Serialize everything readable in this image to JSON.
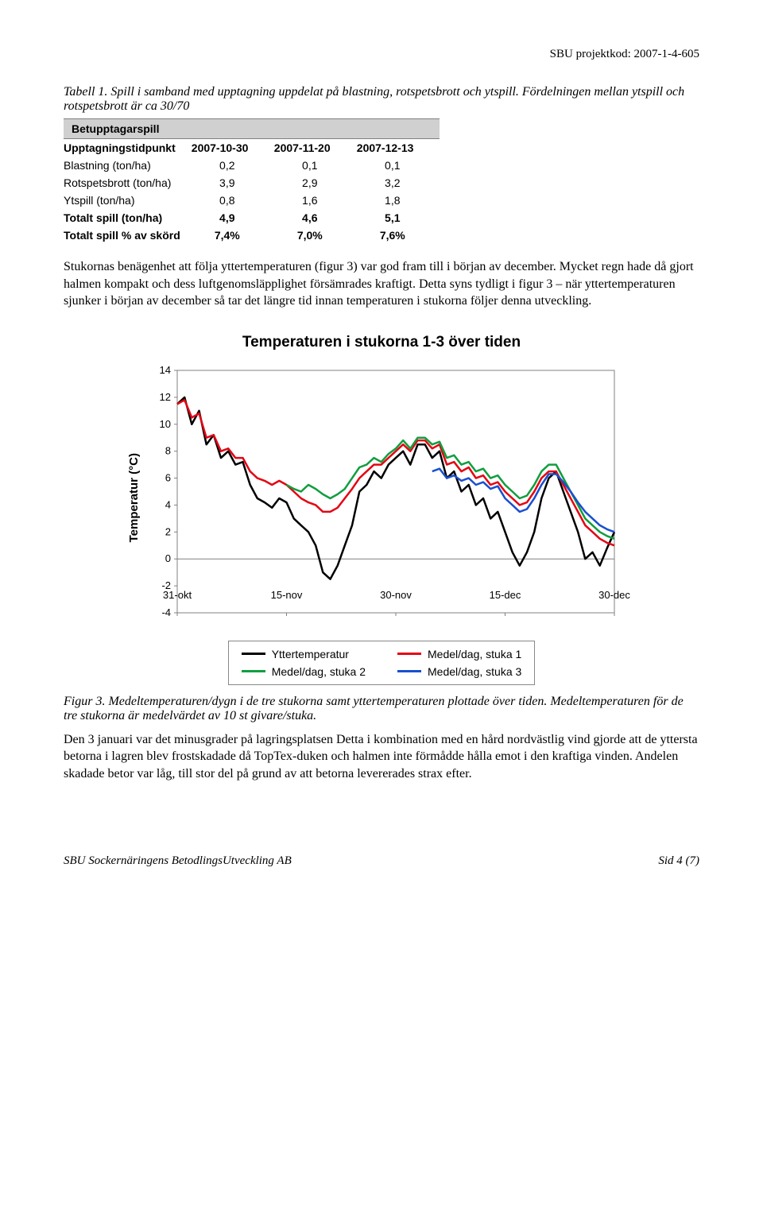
{
  "header": {
    "project_code": "SBU projektkod: 2007-1-4-605"
  },
  "table_caption": "Tabell 1. Spill i samband med upptagning uppdelat på blastning, rotspetsbrott och ytspill. Fördelningen mellan ytspill och rotspetsbrott är ca 30/70",
  "table": {
    "section_header": "Betupptagarspill",
    "col_headers": [
      "Upptagningstidpunkt",
      "2007-10-30",
      "2007-11-20",
      "2007-12-13"
    ],
    "rows": [
      {
        "label": "Blastning (ton/ha)",
        "vals": [
          "0,2",
          "0,1",
          "0,1"
        ],
        "bold": false
      },
      {
        "label": "Rotspetsbrott (ton/ha)",
        "vals": [
          "3,9",
          "2,9",
          "3,2"
        ],
        "bold": false
      },
      {
        "label": "Ytspill (ton/ha)",
        "vals": [
          "0,8",
          "1,6",
          "1,8"
        ],
        "bold": false
      },
      {
        "label": "Totalt spill (ton/ha)",
        "vals": [
          "4,9",
          "4,6",
          "5,1"
        ],
        "bold": true
      },
      {
        "label": "Totalt spill % av skörd",
        "vals": [
          "7,4%",
          "7,0%",
          "7,6%"
        ],
        "bold": true
      }
    ]
  },
  "paragraph_1": "Stukornas benägenhet att följa yttertemperaturen (figur 3) var god fram till i början av december. Mycket regn hade då gjort halmen kompakt och dess luftgenomsläpplighet försämrades kraftigt. Detta syns tydligt i figur 3 – när yttertemperaturen sjunker i början av december så tar det längre tid innan temperaturen i stukorna följer denna utveckling.",
  "chart": {
    "type": "line",
    "title": "Temperaturen i stukorna 1-3 över tiden",
    "ylabel": "Temperatur (°C)",
    "ylim": [
      -4,
      14
    ],
    "ytick_step": 2,
    "x_range_days": [
      0,
      60
    ],
    "xticks": [
      {
        "x": 0,
        "label": "31-okt"
      },
      {
        "x": 15,
        "label": "15-nov"
      },
      {
        "x": 30,
        "label": "30-nov"
      },
      {
        "x": 45,
        "label": "15-dec"
      },
      {
        "x": 60,
        "label": "30-dec"
      }
    ],
    "line_width": 2.5,
    "background_color": "#ffffff",
    "axis_color": "#808080",
    "text_color": "#000000",
    "series": [
      {
        "name": "Yttertemperatur",
        "color": "#000000",
        "data": [
          [
            0,
            11.5
          ],
          [
            1,
            12
          ],
          [
            2,
            10
          ],
          [
            3,
            11
          ],
          [
            4,
            8.5
          ],
          [
            5,
            9.2
          ],
          [
            6,
            7.5
          ],
          [
            7,
            8
          ],
          [
            8,
            7
          ],
          [
            9,
            7.2
          ],
          [
            10,
            5.5
          ],
          [
            11,
            4.5
          ],
          [
            12,
            4.2
          ],
          [
            13,
            3.8
          ],
          [
            14,
            4.5
          ],
          [
            15,
            4.2
          ],
          [
            16,
            3
          ],
          [
            17,
            2.5
          ],
          [
            18,
            2
          ],
          [
            19,
            1
          ],
          [
            20,
            -1
          ],
          [
            21,
            -1.5
          ],
          [
            22,
            -0.5
          ],
          [
            23,
            1
          ],
          [
            24,
            2.5
          ],
          [
            25,
            5
          ],
          [
            26,
            5.5
          ],
          [
            27,
            6.5
          ],
          [
            28,
            6
          ],
          [
            29,
            7
          ],
          [
            30,
            7.5
          ],
          [
            31,
            8
          ],
          [
            32,
            7
          ],
          [
            33,
            8.5
          ],
          [
            34,
            8.5
          ],
          [
            35,
            7.5
          ],
          [
            36,
            8
          ],
          [
            37,
            6
          ],
          [
            38,
            6.5
          ],
          [
            39,
            5
          ],
          [
            40,
            5.5
          ],
          [
            41,
            4
          ],
          [
            42,
            4.5
          ],
          [
            43,
            3
          ],
          [
            44,
            3.5
          ],
          [
            45,
            2
          ],
          [
            46,
            0.5
          ],
          [
            47,
            -0.5
          ],
          [
            48,
            0.5
          ],
          [
            49,
            2
          ],
          [
            50,
            4.5
          ],
          [
            51,
            6
          ],
          [
            52,
            6.5
          ],
          [
            53,
            5
          ],
          [
            54,
            3.5
          ],
          [
            55,
            2
          ],
          [
            56,
            0
          ],
          [
            57,
            0.5
          ],
          [
            58,
            -0.5
          ],
          [
            59,
            0.8
          ],
          [
            60,
            2
          ]
        ]
      },
      {
        "name": "Medel/dag, stuka 1",
        "color": "#e30613",
        "data": [
          [
            0,
            11.5
          ],
          [
            1,
            11.8
          ],
          [
            2,
            10.5
          ],
          [
            3,
            10.8
          ],
          [
            4,
            9
          ],
          [
            5,
            9.2
          ],
          [
            6,
            8
          ],
          [
            7,
            8.2
          ],
          [
            8,
            7.5
          ],
          [
            9,
            7.5
          ],
          [
            10,
            6.5
          ],
          [
            11,
            6
          ],
          [
            12,
            5.8
          ],
          [
            13,
            5.5
          ],
          [
            14,
            5.8
          ],
          [
            15,
            5.5
          ],
          [
            16,
            5
          ],
          [
            17,
            4.5
          ],
          [
            18,
            4.2
          ],
          [
            19,
            4
          ],
          [
            20,
            3.5
          ],
          [
            21,
            3.5
          ],
          [
            22,
            3.8
          ],
          [
            23,
            4.5
          ],
          [
            24,
            5.2
          ],
          [
            25,
            6
          ],
          [
            26,
            6.5
          ],
          [
            27,
            7
          ],
          [
            28,
            7
          ],
          [
            29,
            7.5
          ],
          [
            30,
            8
          ],
          [
            31,
            8.5
          ],
          [
            32,
            8
          ],
          [
            33,
            8.8
          ],
          [
            34,
            8.8
          ],
          [
            35,
            8.2
          ],
          [
            36,
            8.5
          ],
          [
            37,
            7
          ],
          [
            38,
            7.2
          ],
          [
            39,
            6.5
          ],
          [
            40,
            6.8
          ],
          [
            41,
            6
          ],
          [
            42,
            6.2
          ],
          [
            43,
            5.5
          ],
          [
            44,
            5.7
          ],
          [
            45,
            5
          ],
          [
            46,
            4.5
          ],
          [
            47,
            4
          ],
          [
            48,
            4.2
          ],
          [
            49,
            5
          ],
          [
            50,
            6
          ],
          [
            51,
            6.5
          ],
          [
            52,
            6.5
          ],
          [
            53,
            5.5
          ],
          [
            54,
            4.5
          ],
          [
            55,
            3.5
          ],
          [
            56,
            2.5
          ],
          [
            57,
            2
          ],
          [
            58,
            1.5
          ],
          [
            59,
            1.2
          ],
          [
            60,
            1
          ]
        ]
      },
      {
        "name": "Medel/dag, stuka 2",
        "color": "#119e3f",
        "data": [
          [
            15,
            5.5
          ],
          [
            16,
            5.2
          ],
          [
            17,
            5
          ],
          [
            18,
            5.5
          ],
          [
            19,
            5.2
          ],
          [
            20,
            4.8
          ],
          [
            21,
            4.5
          ],
          [
            22,
            4.8
          ],
          [
            23,
            5.2
          ],
          [
            24,
            6
          ],
          [
            25,
            6.8
          ],
          [
            26,
            7
          ],
          [
            27,
            7.5
          ],
          [
            28,
            7.2
          ],
          [
            29,
            7.8
          ],
          [
            30,
            8.2
          ],
          [
            31,
            8.8
          ],
          [
            32,
            8.2
          ],
          [
            33,
            9
          ],
          [
            34,
            9
          ],
          [
            35,
            8.5
          ],
          [
            36,
            8.7
          ],
          [
            37,
            7.5
          ],
          [
            38,
            7.7
          ],
          [
            39,
            7
          ],
          [
            40,
            7.2
          ],
          [
            41,
            6.5
          ],
          [
            42,
            6.7
          ],
          [
            43,
            6
          ],
          [
            44,
            6.2
          ],
          [
            45,
            5.5
          ],
          [
            46,
            5
          ],
          [
            47,
            4.5
          ],
          [
            48,
            4.7
          ],
          [
            49,
            5.5
          ],
          [
            50,
            6.5
          ],
          [
            51,
            7
          ],
          [
            52,
            7
          ],
          [
            53,
            6
          ],
          [
            54,
            5
          ],
          [
            55,
            4
          ],
          [
            56,
            3
          ],
          [
            57,
            2.5
          ],
          [
            58,
            2
          ],
          [
            59,
            1.7
          ],
          [
            60,
            1.5
          ]
        ]
      },
      {
        "name": "Medel/dag, stuka 3",
        "color": "#1a4fcf",
        "data": [
          [
            35,
            6.5
          ],
          [
            36,
            6.7
          ],
          [
            37,
            6
          ],
          [
            38,
            6.2
          ],
          [
            39,
            5.8
          ],
          [
            40,
            6
          ],
          [
            41,
            5.5
          ],
          [
            42,
            5.7
          ],
          [
            43,
            5.2
          ],
          [
            44,
            5.4
          ],
          [
            45,
            4.5
          ],
          [
            46,
            4
          ],
          [
            47,
            3.5
          ],
          [
            48,
            3.7
          ],
          [
            49,
            4.5
          ],
          [
            50,
            5.5
          ],
          [
            51,
            6.3
          ],
          [
            52,
            6.3
          ],
          [
            53,
            5.7
          ],
          [
            54,
            5
          ],
          [
            55,
            4.2
          ],
          [
            56,
            3.5
          ],
          [
            57,
            3
          ],
          [
            58,
            2.5
          ],
          [
            59,
            2.2
          ],
          [
            60,
            2
          ]
        ]
      }
    ],
    "legend": [
      {
        "label": "Yttertemperatur",
        "color": "#000000"
      },
      {
        "label": "Medel/dag, stuka 1",
        "color": "#e30613"
      },
      {
        "label": "Medel/dag, stuka 2",
        "color": "#119e3f"
      },
      {
        "label": "Medel/dag, stuka 3",
        "color": "#1a4fcf"
      }
    ]
  },
  "figure_caption": "Figur 3. Medeltemperaturen/dygn i de tre stukorna samt yttertemperaturen plottade över tiden. Medeltemperaturen för de tre stukorna är medelvärdet av 10 st givare/stuka.",
  "paragraph_2": "Den 3 januari var det minusgrader på lagringsplatsen Detta i kombination med en hård nordvästlig vind gjorde att de yttersta betorna i lagren blev frostskadade då TopTex-duken och halmen inte förmådde hålla emot i den kraftiga vinden. Andelen skadade betor var låg, till stor del på grund av att betorna levererades strax efter.",
  "footer": {
    "left": "SBU Sockernäringens BetodlingsUtveckling AB",
    "right": "Sid 4 (7)"
  }
}
